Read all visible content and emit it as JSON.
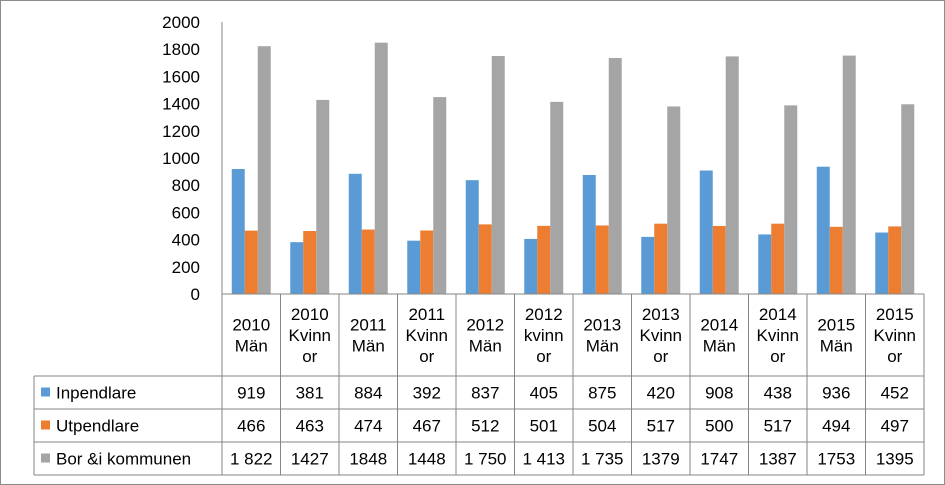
{
  "chart_data": {
    "type": "bar",
    "categories": [
      [
        "2010",
        "Män"
      ],
      [
        "2010",
        "Kvinn",
        "or"
      ],
      [
        "2011",
        "Män"
      ],
      [
        "2011",
        "Kvinn",
        "or"
      ],
      [
        "2012",
        "Män"
      ],
      [
        "2012",
        "kvinn",
        "or"
      ],
      [
        "2013",
        "Män"
      ],
      [
        "2013",
        "Kvinn",
        "or"
      ],
      [
        "2014",
        "Män"
      ],
      [
        "2014",
        "Kvinn",
        "or"
      ],
      [
        "2015",
        "Män"
      ],
      [
        "2015",
        "Kvinn",
        "or"
      ]
    ],
    "series": [
      {
        "name": "Inpendlare",
        "color": "#5b9bd5",
        "values": [
          919,
          381,
          884,
          392,
          837,
          405,
          875,
          420,
          908,
          438,
          936,
          452
        ],
        "labels": [
          "919",
          "381",
          "884",
          "392",
          "837",
          "405",
          "875",
          "420",
          "908",
          "438",
          "936",
          "452"
        ]
      },
      {
        "name": "Utpendlare",
        "color": "#ed7d31",
        "values": [
          466,
          463,
          474,
          467,
          512,
          501,
          504,
          517,
          500,
          517,
          494,
          497
        ],
        "labels": [
          "466",
          "463",
          "474",
          "467",
          "512",
          "501",
          "504",
          "517",
          "500",
          "517",
          "494",
          "497"
        ]
      },
      {
        "name": "Bor &i kommunen",
        "color": "#a5a5a5",
        "values": [
          1822,
          1427,
          1848,
          1448,
          1750,
          1413,
          1735,
          1379,
          1747,
          1387,
          1753,
          1395
        ],
        "labels": [
          "1 822",
          "1427",
          "1848",
          "1448",
          "1 750",
          "1 413",
          "1 735",
          "1379",
          "1747",
          "1387",
          "1753",
          "1395"
        ]
      }
    ],
    "yticks": [
      "0",
      "200",
      "400",
      "600",
      "800",
      "1000",
      "1200",
      "1400",
      "1600",
      "1800",
      "2000"
    ],
    "ylim": [
      0,
      2000
    ],
    "grid": false,
    "legend": "data-table"
  }
}
